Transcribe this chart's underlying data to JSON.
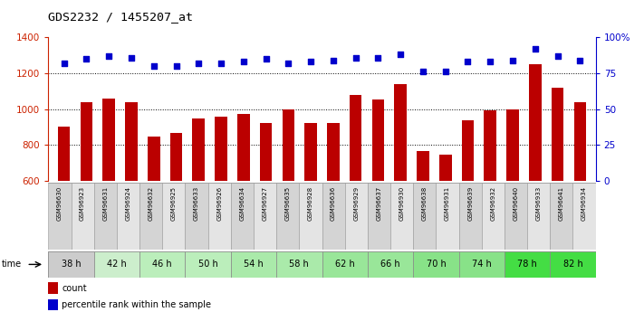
{
  "title": "GDS2232 / 1455207_at",
  "samples": [
    "GSM96630",
    "GSM96923",
    "GSM96631",
    "GSM96924",
    "GSM96632",
    "GSM96925",
    "GSM96633",
    "GSM96926",
    "GSM96634",
    "GSM96927",
    "GSM96635",
    "GSM96928",
    "GSM96636",
    "GSM96929",
    "GSM96637",
    "GSM96930",
    "GSM96638",
    "GSM96931",
    "GSM96639",
    "GSM96932",
    "GSM96640",
    "GSM96933",
    "GSM96641",
    "GSM96934"
  ],
  "counts": [
    905,
    1040,
    1060,
    1040,
    850,
    870,
    950,
    960,
    975,
    925,
    1000,
    925,
    925,
    1080,
    1055,
    1140,
    765,
    748,
    940,
    993,
    1000,
    1250,
    1120,
    1040
  ],
  "percentiles": [
    82,
    85,
    87,
    86,
    80,
    80,
    82,
    82,
    83,
    85,
    82,
    83,
    84,
    86,
    86,
    88,
    76,
    76,
    83,
    83,
    84,
    92,
    87,
    84
  ],
  "time_groups": [
    {
      "label": "38 h",
      "indices": [
        0,
        1
      ],
      "color": "#cccccc"
    },
    {
      "label": "42 h",
      "indices": [
        2,
        3
      ],
      "color": "#cceecc"
    },
    {
      "label": "46 h",
      "indices": [
        4,
        5
      ],
      "color": "#bbeebb"
    },
    {
      "label": "50 h",
      "indices": [
        6,
        7
      ],
      "color": "#bbeebb"
    },
    {
      "label": "54 h",
      "indices": [
        8,
        9
      ],
      "color": "#aaeaaa"
    },
    {
      "label": "58 h",
      "indices": [
        10,
        11
      ],
      "color": "#aaeaaa"
    },
    {
      "label": "62 h",
      "indices": [
        12,
        13
      ],
      "color": "#99e699"
    },
    {
      "label": "66 h",
      "indices": [
        14,
        15
      ],
      "color": "#99e699"
    },
    {
      "label": "70 h",
      "indices": [
        16,
        17
      ],
      "color": "#88e288"
    },
    {
      "label": "74 h",
      "indices": [
        18,
        19
      ],
      "color": "#88e288"
    },
    {
      "label": "78 h",
      "indices": [
        20,
        21
      ],
      "color": "#44dd44"
    },
    {
      "label": "82 h",
      "indices": [
        22,
        23
      ],
      "color": "#44dd44"
    }
  ],
  "ylim_left": [
    600,
    1400
  ],
  "ylim_right": [
    0,
    100
  ],
  "bar_color": "#bb0000",
  "dot_color": "#0000cc",
  "grid_color": "#000000",
  "bg_color": "#ffffff",
  "label_color_left": "#cc2200",
  "label_color_right": "#0000cc",
  "yticks_left": [
    600,
    800,
    1000,
    1200,
    1400
  ],
  "yticks_right": [
    0,
    25,
    50,
    75,
    100
  ],
  "legend_count_color": "#bb0000",
  "legend_pct_color": "#0000cc",
  "cell_bg_even": "#d4d4d4",
  "cell_bg_odd": "#e4e4e4",
  "cell_border": "#999999"
}
